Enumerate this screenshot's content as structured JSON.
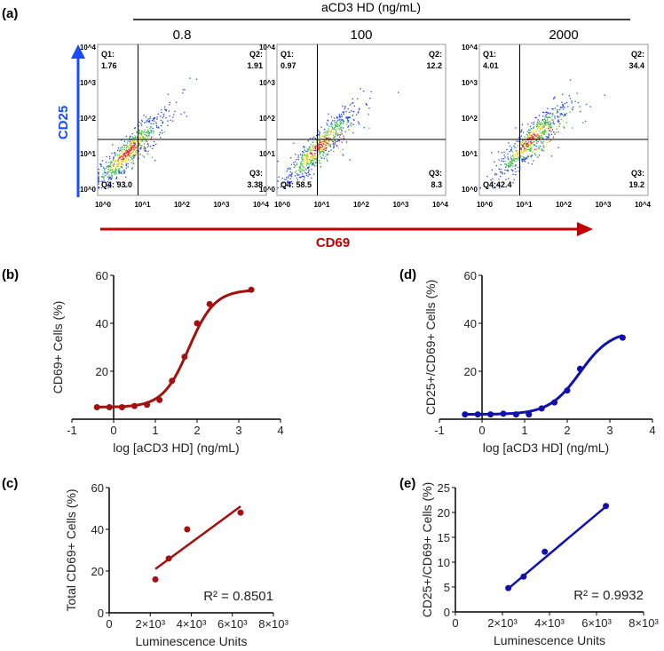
{
  "panel_labels": [
    "(a)",
    "(b)",
    "(c)",
    "(d)",
    "(e)"
  ],
  "chart_data": [
    {
      "id": "a",
      "type": "scatter",
      "subtype": "flow-cytometry-density",
      "header": "aCD3 HD (ng/mL)",
      "xlabel": "CD69",
      "ylabel": "CD25",
      "axis_scale": "log",
      "tick_labels": [
        "10^0",
        "10^1",
        "10^2",
        "10^3",
        "10^4"
      ],
      "arrow_colors": {
        "x": "#c00000",
        "y": "#1a4cff"
      },
      "plots": [
        {
          "title": "0.8",
          "q1_label": "Q1:",
          "q1": "1.76",
          "q2_label": "Q2:",
          "q2": "1.91",
          "q3_label": "Q3:",
          "q3": "3.38",
          "q4_label": "Q4: 93.0",
          "center": [
            0.6,
            1.1
          ],
          "spread": 0.9
        },
        {
          "title": "100",
          "q1_label": "Q1:",
          "q1": "0.97",
          "q2_label": "Q2:",
          "q2": "12.2",
          "q3_label": "Q3:",
          "q3": "8.3",
          "q4_label": "Q4: 58.5",
          "center": [
            0.9,
            1.25
          ],
          "spread": 1.2
        },
        {
          "title": "2000",
          "q1_label": "Q1:",
          "q1": "4.01",
          "q2_label": "Q2:",
          "q2": "34.4",
          "q3_label": "Q3:",
          "q3": "19.2",
          "q4_label": "Q4:42.4",
          "center": [
            1.1,
            1.4
          ],
          "spread": 1.4
        }
      ]
    },
    {
      "id": "b",
      "type": "line",
      "color": "#a50f0f",
      "xlabel": "log [aCD3 HD] (ng/mL)",
      "ylabel": "CD69+ Cells (%)",
      "xlim": [
        -1,
        4
      ],
      "ylim": [
        0,
        60
      ],
      "xticks": [
        "-1",
        "0",
        "1",
        "2",
        "3",
        "4"
      ],
      "yticks": [
        "20",
        "40",
        "60"
      ],
      "x": [
        -0.4,
        -0.1,
        0.2,
        0.5,
        0.8,
        1.1,
        1.4,
        1.7,
        2.0,
        2.3,
        3.3
      ],
      "y": [
        5,
        5,
        5,
        5.5,
        6,
        8,
        16,
        26,
        40,
        48,
        54
      ],
      "fit": {
        "bottom": 5,
        "top": 54,
        "logEC50": 1.8,
        "hill": 1.4
      }
    },
    {
      "id": "c",
      "type": "scatter",
      "color": "#a50f0f",
      "xlabel": "Luminescence Units",
      "ylabel": "Total CD69+ Cells (%)",
      "xlim": [
        0,
        8000
      ],
      "ylim": [
        0,
        60
      ],
      "xticks": [
        "0",
        "2×10³",
        "4×10³",
        "6×10³",
        "8×10³"
      ],
      "yticks": [
        "0",
        "20",
        "40",
        "60"
      ],
      "x": [
        2250,
        2900,
        3800,
        6400
      ],
      "y": [
        16,
        26,
        40,
        48
      ],
      "fit_line": [
        [
          2250,
          21
        ],
        [
          6400,
          51
        ]
      ],
      "annotation": "R² = 0.8501"
    },
    {
      "id": "d",
      "type": "line",
      "color": "#1010b0",
      "xlabel": "log [aCD3 HD] (ng/mL)",
      "ylabel": "CD25+/CD69+ Cells (%)",
      "xlim": [
        -1,
        4
      ],
      "ylim": [
        0,
        60
      ],
      "xticks": [
        "-1",
        "0",
        "1",
        "2",
        "3",
        "4"
      ],
      "yticks": [
        "20",
        "40",
        "60"
      ],
      "x": [
        -0.4,
        -0.1,
        0.2,
        0.5,
        0.8,
        1.1,
        1.4,
        1.7,
        2.0,
        2.3,
        3.3
      ],
      "y": [
        2,
        2,
        2,
        2.3,
        2,
        2,
        4.5,
        7,
        12,
        21,
        34
      ],
      "fit": {
        "bottom": 2,
        "top": 37,
        "logEC50": 2.3,
        "hill": 1.2
      }
    },
    {
      "id": "e",
      "type": "scatter",
      "color": "#1010b0",
      "xlabel": "Luminescence Units",
      "ylabel": "CD25+/CD69+ Cells (%)",
      "xlim": [
        0,
        8000
      ],
      "ylim": [
        0,
        25
      ],
      "xticks": [
        "0",
        "2×10³",
        "4×10³",
        "6×10³",
        "8×10³"
      ],
      "yticks": [
        "0",
        "5",
        "10",
        "15",
        "20",
        "25"
      ],
      "x": [
        2250,
        2900,
        3800,
        6400
      ],
      "y": [
        4.8,
        7.1,
        12.1,
        21.3
      ],
      "fit_line": [
        [
          2250,
          4.7
        ],
        [
          6400,
          21.2
        ]
      ],
      "annotation": "R² = 0.9932"
    }
  ]
}
